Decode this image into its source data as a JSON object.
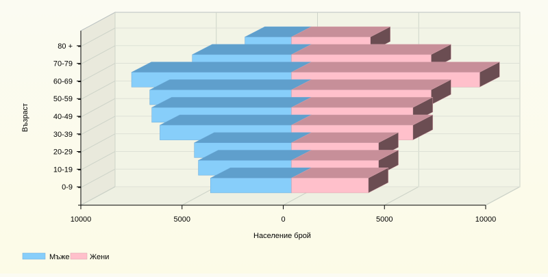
{
  "chart_data": {
    "type": "bar",
    "orientation": "horizontal",
    "style": "3d-population-pyramid",
    "categories": [
      "0-9",
      "10-19",
      "20-29",
      "30-39",
      "40-49",
      "50-59",
      "60-69",
      "70-79",
      "80 +"
    ],
    "series": [
      {
        "name": "Мъже",
        "color": "#87CEFA",
        "values": [
          4000,
          4600,
          4800,
          6500,
          6900,
          7000,
          7900,
          4900,
          2300
        ]
      },
      {
        "name": "Жени",
        "color": "#FFC0CB",
        "values": [
          3800,
          4300,
          4300,
          6000,
          6000,
          6900,
          9300,
          6900,
          3900
        ]
      }
    ],
    "xlabel": "Население брой",
    "ylabel": "Възраст",
    "x_ticks": [
      "10000",
      "5000",
      "0",
      "5000",
      "10000"
    ],
    "xlim": [
      -10000,
      10000
    ],
    "grid": true,
    "legend_position": "bottom-left"
  }
}
